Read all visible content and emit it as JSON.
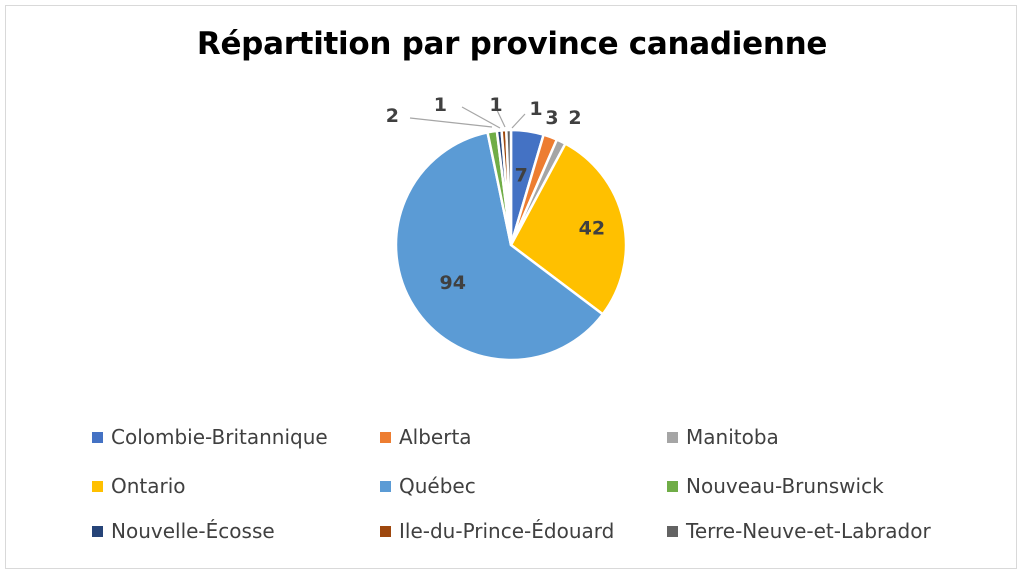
{
  "chart_data": {
    "type": "pie",
    "title": "Répartition par province canadienne",
    "categories": [
      "Colombie-Britannique",
      "Alberta",
      "Manitoba",
      "Ontario",
      "Québec",
      "Nouveau-Brunswick",
      "Nouvelle-Écosse",
      "Ile-du-Prince-Édouard",
      "Terre-Neuve-et-Labrador"
    ],
    "values": [
      7,
      3,
      2,
      42,
      94,
      2,
      1,
      1,
      1
    ],
    "colors": [
      "#4472C4",
      "#ED7D31",
      "#A5A5A5",
      "#FFC000",
      "#5B9BD5",
      "#70AD47",
      "#264478",
      "#9E480E",
      "#636363"
    ],
    "legend_position": "bottom",
    "data_labels": [
      "7",
      "3",
      "2",
      "42",
      "94",
      "2",
      "1",
      "1",
      "1"
    ]
  }
}
